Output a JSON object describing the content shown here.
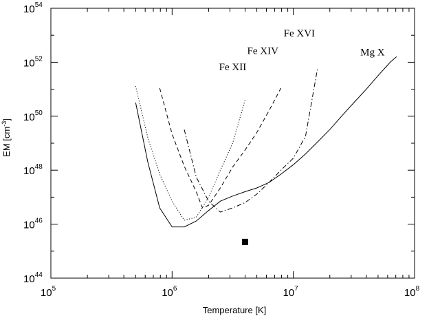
{
  "chart_data": {
    "type": "line",
    "xlabel": "Temperature [K]",
    "ylabel": "EM [cm",
    "ylabel_exp": "-3",
    "ylabel_close": "]",
    "x_scale": "log",
    "y_scale": "log",
    "xlim": [
      100000,
      100000000
    ],
    "ylim": [
      1e+44,
      1e+54
    ],
    "grid": false,
    "legend": "none",
    "x_ticks": [
      {
        "base": "10",
        "exp": "5",
        "value": 100000
      },
      {
        "base": "10",
        "exp": "6",
        "value": 1000000
      },
      {
        "base": "10",
        "exp": "7",
        "value": 10000000
      },
      {
        "base": "10",
        "exp": "8",
        "value": 100000000
      }
    ],
    "y_ticks": [
      {
        "base": "10",
        "exp": "44",
        "value": 1e+44
      },
      {
        "base": "10",
        "exp": "46",
        "value": 1e+46
      },
      {
        "base": "10",
        "exp": "48",
        "value": 1e+48
      },
      {
        "base": "10",
        "exp": "50",
        "value": 1e+50
      },
      {
        "base": "10",
        "exp": "52",
        "value": 1e+52
      },
      {
        "base": "10",
        "exp": "54",
        "value": 1e+54
      }
    ],
    "series": [
      {
        "id": "mg-x",
        "style": "solid",
        "points": [
          [
            500000.0,
            3.2e+50
          ],
          [
            630000.0,
            2e+48
          ],
          [
            790000.0,
            4e+46
          ],
          [
            1000000.0,
            7.9e+45
          ],
          [
            1260000.0,
            7.9e+45
          ],
          [
            1580000.0,
            1.3e+46
          ],
          [
            2000000.0,
            3.2e+46
          ],
          [
            2500000.0,
            7.1e+46
          ],
          [
            3160000.0,
            1.1e+47
          ],
          [
            4000000.0,
            1.6e+47
          ],
          [
            5000000.0,
            2.2e+47
          ],
          [
            6300000.0,
            3.5e+47
          ],
          [
            7900000.0,
            7.1e+47
          ],
          [
            10000000.0,
            1.6e+48
          ],
          [
            12600000.0,
            4e+48
          ],
          [
            15800000.0,
            1.1e+49
          ],
          [
            20000000.0,
            3.2e+49
          ],
          [
            25000000.0,
            1e+50
          ],
          [
            31600000.0,
            3.2e+50
          ],
          [
            40000000.0,
            1e+51
          ],
          [
            50000000.0,
            3.2e+51
          ],
          [
            63000000.0,
            1e+52
          ],
          [
            71000000.0,
            1.6e+52
          ]
        ]
      },
      {
        "id": "fe-xii",
        "style": "dotted",
        "points": [
          [
            500000.0,
            1.3e+51
          ],
          [
            630000.0,
            1.6e+49
          ],
          [
            790000.0,
            7.1e+47
          ],
          [
            1000000.0,
            7.1e+46
          ],
          [
            1260000.0,
            1.4e+46
          ],
          [
            1580000.0,
            1.8e+46
          ],
          [
            2000000.0,
            1e+47
          ],
          [
            2500000.0,
            1e+48
          ],
          [
            3160000.0,
            1e+49
          ],
          [
            4000000.0,
            4e+50
          ]
        ]
      },
      {
        "id": "fe-xiv",
        "style": "dashed",
        "points": [
          [
            790000.0,
            1.1e+51
          ],
          [
            1000000.0,
            2.2e+49
          ],
          [
            1260000.0,
            1.4e+48
          ],
          [
            1580000.0,
            1.6e+47
          ],
          [
            1780000.0,
            4e+46
          ],
          [
            2000000.0,
            5e+46
          ],
          [
            2500000.0,
            2.2e+47
          ],
          [
            3160000.0,
            1.3e+48
          ],
          [
            4000000.0,
            5.6e+48
          ],
          [
            5000000.0,
            2.5e+49
          ],
          [
            6300000.0,
            1.6e+50
          ],
          [
            7900000.0,
            1.1e+51
          ]
        ]
      },
      {
        "id": "fe-xvi",
        "style": "dashdot",
        "points": [
          [
            1260000.0,
            3.2e+49
          ],
          [
            1580000.0,
            5.6e+47
          ],
          [
            2000000.0,
            7.1e+46
          ],
          [
            2500000.0,
            2.8e+46
          ],
          [
            3160000.0,
            4e+46
          ],
          [
            4000000.0,
            6.3e+46
          ],
          [
            5000000.0,
            1.3e+47
          ],
          [
            6300000.0,
            3.5e+47
          ],
          [
            7900000.0,
            1e+48
          ],
          [
            10000000.0,
            2.8e+48
          ],
          [
            12600000.0,
            1.8e+49
          ],
          [
            15800000.0,
            5.6e+51
          ]
        ]
      }
    ],
    "annotations": [
      {
        "id": "label-fe-xii",
        "text": "Fe XII",
        "x": 3160000.0,
        "y": 5e+51
      },
      {
        "id": "label-fe-xiv",
        "text": "Fe XIV",
        "x": 5600000.0,
        "y": 2e+52
      },
      {
        "id": "label-fe-xvi",
        "text": "Fe XVI",
        "x": 11200000.0,
        "y": 8.9e+52
      },
      {
        "id": "label-mg-x",
        "text": "Mg X",
        "x": 45000000.0,
        "y": 1.8e+52
      }
    ],
    "markers": [
      {
        "id": "observed-point",
        "shape": "square",
        "x": 4000000.0,
        "y": 2.2e+45
      }
    ]
  }
}
